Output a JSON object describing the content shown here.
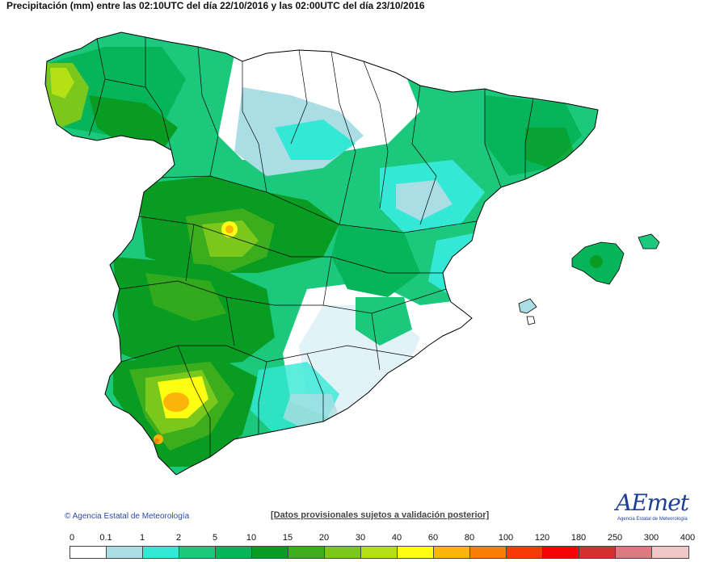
{
  "header": {
    "title": "Precipitación (mm) entre las 02:10UTC del día 22/10/2016 y las 02:00UTC del día 23/10/2016"
  },
  "footer": {
    "copyright": "© Agencia Estatal de Meteorología",
    "provisional": "[Datos provisionales sujetos a validación posterior]",
    "logo_text": "AEmet",
    "logo_subtext": "Agencia Estatal de Meteorología"
  },
  "legend": {
    "thresholds": [
      "0",
      "0.1",
      "1",
      "2",
      "5",
      "10",
      "15",
      "20",
      "30",
      "40",
      "60",
      "80",
      "100",
      "120",
      "180",
      "250",
      "300",
      "400"
    ],
    "colors": [
      "#ffffff",
      "#aadde4",
      "#33e9d6",
      "#1cc87c",
      "#06b55a",
      "#089c22",
      "#3cae1e",
      "#7bc81c",
      "#b5e014",
      "#fefe12",
      "#fbb407",
      "#fa7d05",
      "#f83a05",
      "#f70202",
      "#d33030",
      "#db7a80",
      "#f2c7c7"
    ]
  },
  "map": {
    "region": "Península Ibérica (España) e Islas Baleares",
    "colors": {
      "sea": "#ffffff",
      "border": "#000000"
    }
  }
}
